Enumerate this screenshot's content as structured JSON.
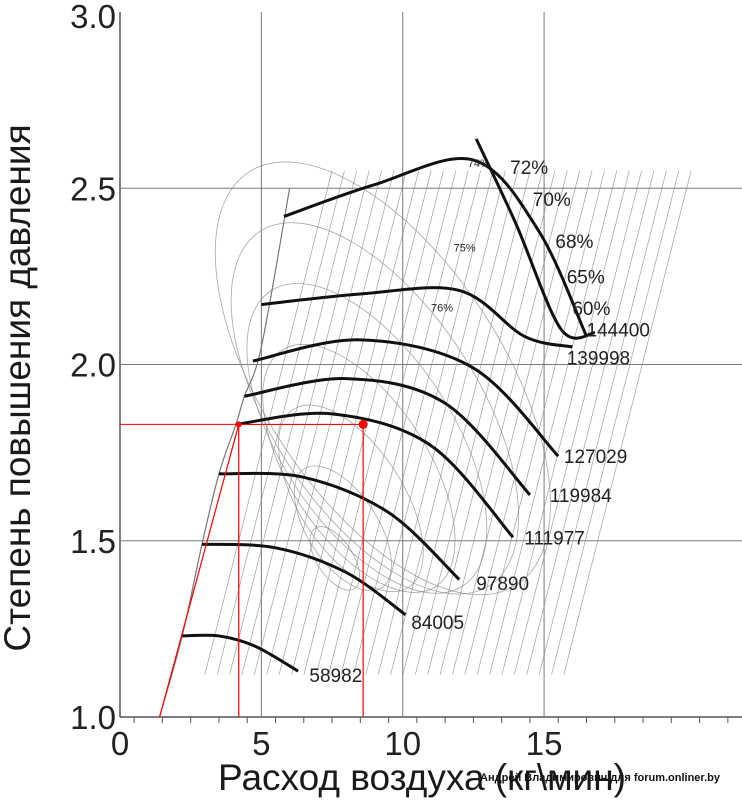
{
  "chart_data": {
    "type": "line",
    "title": "",
    "xlabel": "Расход воздуха (кг\\мин)",
    "ylabel": "Степень повышения давления",
    "xlim": [
      0,
      22
    ],
    "ylim": [
      1.0,
      3.0
    ],
    "x_ticks": [
      "0",
      "5",
      "10",
      "15"
    ],
    "y_ticks": [
      "1.0",
      "1.5",
      "2.0",
      "2.5",
      "3.0"
    ],
    "grid": true,
    "surge_line": [
      [
        1.4,
        1.0
      ],
      [
        2.2,
        1.23
      ],
      [
        2.9,
        1.49
      ],
      [
        3.5,
        1.69
      ],
      [
        4.1,
        1.83
      ],
      [
        4.4,
        1.91
      ],
      [
        5.0,
        2.05
      ],
      [
        6.0,
        2.5
      ]
    ],
    "speed_lines": [
      {
        "label": "58982",
        "points": [
          [
            2.2,
            1.23
          ],
          [
            3.5,
            1.23
          ],
          [
            4.8,
            1.2
          ],
          [
            6.3,
            1.13
          ]
        ]
      },
      {
        "label": "84005",
        "points": [
          [
            2.9,
            1.49
          ],
          [
            5.5,
            1.48
          ],
          [
            8.0,
            1.41
          ],
          [
            10.1,
            1.29
          ]
        ]
      },
      {
        "label": "97890",
        "points": [
          [
            3.5,
            1.69
          ],
          [
            6.5,
            1.68
          ],
          [
            9.5,
            1.58
          ],
          [
            12.0,
            1.39
          ]
        ]
      },
      {
        "label": "111977",
        "points": [
          [
            4.1,
            1.83
          ],
          [
            7.5,
            1.86
          ],
          [
            11.0,
            1.77
          ],
          [
            13.9,
            1.51
          ]
        ]
      },
      {
        "label": "119984",
        "points": [
          [
            4.4,
            1.91
          ],
          [
            8.0,
            1.96
          ],
          [
            11.5,
            1.89
          ],
          [
            14.5,
            1.63
          ]
        ]
      },
      {
        "label": "127029",
        "points": [
          [
            4.7,
            2.01
          ],
          [
            8.5,
            2.07
          ],
          [
            12.5,
            1.99
          ],
          [
            15.5,
            1.74
          ]
        ]
      },
      {
        "label": "139998",
        "points": [
          [
            5.0,
            2.17
          ],
          [
            8.5,
            2.2
          ],
          [
            12.0,
            2.21
          ],
          [
            14.3,
            2.08
          ],
          [
            16.0,
            2.05
          ]
        ]
      },
      {
        "label": "144400",
        "points": [
          [
            5.8,
            2.42
          ],
          [
            9.0,
            2.51
          ],
          [
            12.5,
            2.58
          ],
          [
            14.8,
            2.38
          ],
          [
            16.5,
            2.08
          ]
        ]
      }
    ],
    "choke_line": [
      [
        12.6,
        2.64
      ],
      [
        14.0,
        2.4
      ],
      [
        15.6,
        2.1
      ],
      [
        16.8,
        2.09
      ]
    ],
    "speed_label_positions": [
      [
        6.7,
        1.1
      ],
      [
        10.3,
        1.25
      ],
      [
        12.6,
        1.36
      ],
      [
        14.3,
        1.49
      ],
      [
        15.2,
        1.61
      ],
      [
        15.7,
        1.72
      ],
      [
        15.8,
        2.0
      ],
      [
        16.5,
        2.08
      ]
    ],
    "efficiency_labels": [
      "76%",
      "75%",
      "74%",
      "72%",
      "70%",
      "68%",
      "65%",
      "60%"
    ],
    "efficiency_label_positions": [
      [
        11.0,
        2.15
      ],
      [
        11.8,
        2.32
      ],
      [
        12.3,
        2.56
      ],
      [
        13.8,
        2.54
      ],
      [
        14.6,
        2.45
      ],
      [
        15.4,
        2.33
      ],
      [
        15.8,
        2.23
      ],
      [
        16.0,
        2.14
      ]
    ],
    "operating_points": [
      {
        "x": 4.2,
        "y": 1.83,
        "color": "#ff0000"
      },
      {
        "x": 8.6,
        "y": 1.83,
        "color": "#ff0000"
      }
    ],
    "operating_guides": [
      [
        [
          1.4,
          1.0
        ],
        [
          4.2,
          1.83
        ]
      ],
      [
        [
          4.2,
          1.0
        ],
        [
          4.2,
          1.83
        ],
        [
          8.6,
          1.83
        ],
        [
          8.6,
          1.0
        ]
      ]
    ]
  },
  "watermark": "Андрей Владимирович для forum.onliner.by",
  "colors": {
    "grid": "#7a7a7a",
    "speed_line": "#111111",
    "contour": "#8a8a8a",
    "highlight": "#ff0000"
  }
}
